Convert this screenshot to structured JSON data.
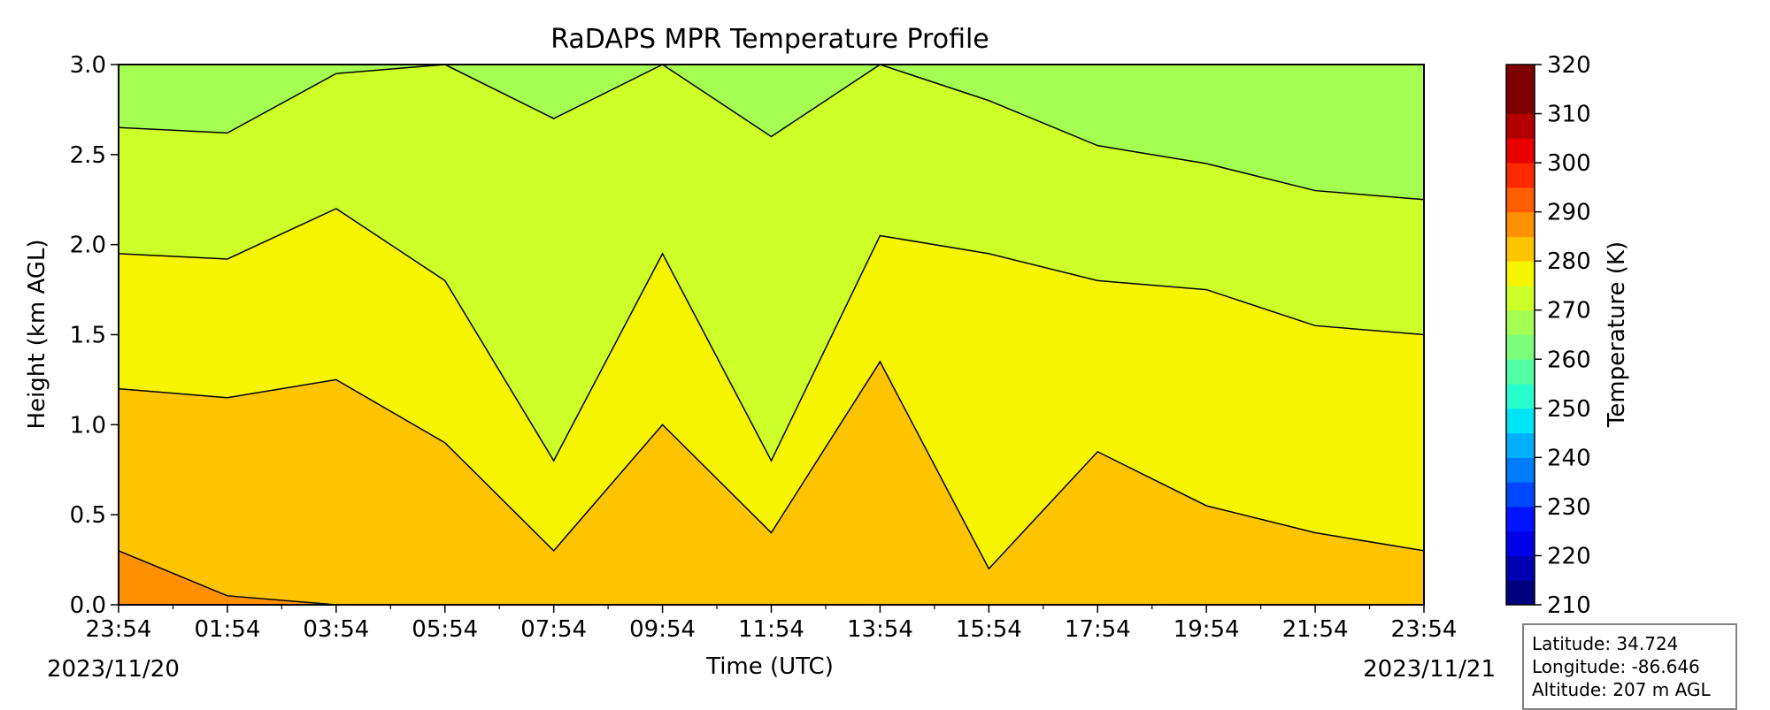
{
  "chart_data": {
    "type": "heatmap",
    "title": "RaDAPS MPR Temperature Profile",
    "xlabel": "Time (UTC)",
    "ylabel": "Height (km AGL)",
    "x_tick_labels": [
      "23:54",
      "01:54",
      "03:54",
      "05:54",
      "07:54",
      "09:54",
      "11:54",
      "13:54",
      "15:54",
      "17:54",
      "19:54",
      "21:54",
      "23:54"
    ],
    "x_dates": {
      "start": "2023/11/20",
      "end": "2023/11/21"
    },
    "x_range": [
      "2023-11-20 23:54",
      "2023-11-21 23:54"
    ],
    "y_ticks": [
      0.0,
      0.5,
      1.0,
      1.5,
      2.0,
      2.5,
      3.0
    ],
    "y_tick_labels": [
      "0.0",
      "0.5",
      "1.0",
      "1.5",
      "2.0",
      "2.5",
      "3.0"
    ],
    "ylim": [
      0,
      3
    ],
    "contour_interval_K": 5,
    "colorbar": {
      "label": "Temperature (K)",
      "range": [
        210,
        320
      ],
      "tick_labels": [
        "210",
        "220",
        "230",
        "240",
        "250",
        "260",
        "270",
        "280",
        "290",
        "300",
        "310",
        "320"
      ],
      "level_colors": [
        "#00007f",
        "#0000b2",
        "#0000e8",
        "#0014ff",
        "#0048ff",
        "#007cff",
        "#00b0ff",
        "#00e4f7",
        "#29ffcd",
        "#52ffa4",
        "#7bff7b",
        "#a4ff52",
        "#cdff29",
        "#f7f400",
        "#ffc400",
        "#ff9000",
        "#ff5d00",
        "#ff2900",
        "#e80000",
        "#b20000",
        "#7f0000",
        "#7f0000"
      ]
    },
    "boundary_heights_km": {
      "x_hours": [
        0,
        2,
        4,
        6,
        8,
        10,
        12,
        14,
        16,
        18,
        20,
        22,
        24
      ],
      "t285": [
        0.3,
        0.05,
        0,
        0,
        0,
        0,
        0,
        0,
        0,
        0,
        0,
        0,
        0
      ],
      "t280": [
        1.2,
        1.15,
        1.25,
        0.9,
        0.3,
        1.0,
        0.4,
        1.35,
        0.2,
        0.85,
        0.55,
        0.4,
        0.3
      ],
      "t275": [
        1.95,
        1.92,
        2.2,
        1.8,
        0.8,
        1.95,
        0.8,
        2.05,
        1.95,
        1.8,
        1.75,
        1.55,
        1.5
      ],
      "t270": [
        2.65,
        2.62,
        2.95,
        3.0,
        2.7,
        3.0,
        2.6,
        3.0,
        2.8,
        2.55,
        2.45,
        2.3,
        2.25
      ]
    },
    "fill_colors": {
      "below_285": "#ff9000",
      "280_285": "#ffc400",
      "275_280": "#f7f400",
      "270_275": "#cdff29",
      "265_270": "#a4ff52"
    }
  },
  "station": {
    "latitude": "Latitude: 34.724",
    "longitude": "Longitude: -86.646",
    "altitude": "Altitude: 207 m AGL"
  }
}
